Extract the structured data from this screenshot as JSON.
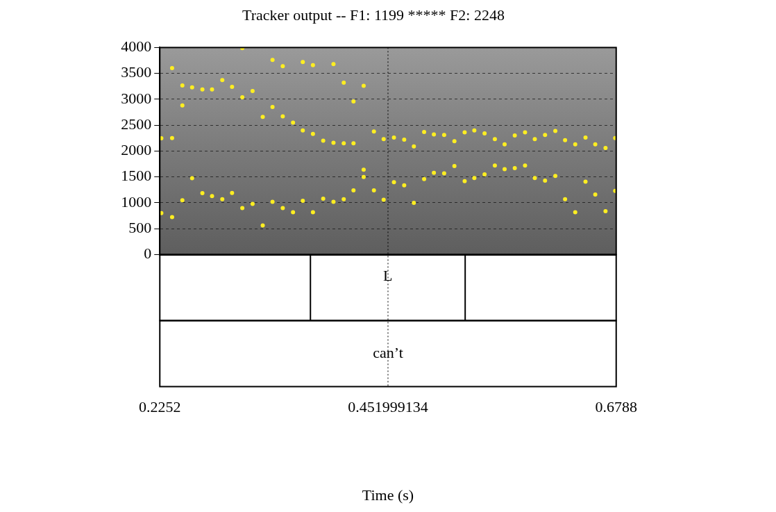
{
  "chart_data": {
    "type": "scatter",
    "title": "Tracker output -- F1: 1199 ***** F2: 2248",
    "x_label": "Time (s)",
    "xlim": [
      0.2252,
      0.6788
    ],
    "xticks": [
      0.2252,
      0.451999134,
      0.6788
    ],
    "ylim": [
      0,
      4000
    ],
    "yticks": [
      0,
      500,
      1000,
      1500,
      2000,
      2500,
      3000,
      3500,
      4000
    ],
    "grid": true,
    "color": "#ffee22",
    "marker": "circle",
    "cursor": 0.451999134,
    "x": [
      0.2267,
      0.2267,
      0.2374,
      0.2374,
      0.2374,
      0.2476,
      0.2476,
      0.2476,
      0.2573,
      0.2573,
      0.2675,
      0.2675,
      0.2771,
      0.2771,
      0.2873,
      0.2873,
      0.297,
      0.297,
      0.3072,
      0.3072,
      0.3072,
      0.3174,
      0.3174,
      0.3275,
      0.3275,
      0.3372,
      0.3372,
      0.3372,
      0.3474,
      0.3474,
      0.3474,
      0.3576,
      0.3576,
      0.3673,
      0.3673,
      0.3673,
      0.3774,
      0.3774,
      0.3774,
      0.3876,
      0.3876,
      0.3978,
      0.3978,
      0.3978,
      0.408,
      0.408,
      0.408,
      0.4177,
      0.4177,
      0.4177,
      0.4278,
      0.4278,
      0.4278,
      0.438,
      0.438,
      0.4477,
      0.4477,
      0.4579,
      0.4579,
      0.4681,
      0.4681,
      0.4777,
      0.4777,
      0.4879,
      0.4879,
      0.4976,
      0.4976,
      0.5078,
      0.5078,
      0.518,
      0.518,
      0.5282,
      0.5282,
      0.5378,
      0.5378,
      0.548,
      0.548,
      0.5582,
      0.5582,
      0.5679,
      0.5679,
      0.578,
      0.578,
      0.5882,
      0.5882,
      0.5979,
      0.5979,
      0.6081,
      0.6081,
      0.6183,
      0.6183,
      0.628,
      0.628,
      0.6381,
      0.6381,
      0.6483,
      0.6483,
      0.658,
      0.658,
      0.6682,
      0.6682,
      0.6778,
      0.6778
    ],
    "values": [
      2247,
      802,
      3604,
      2250,
      723,
      3267,
      2881,
      1049,
      3230,
      1475,
      3190,
      1188,
      3190,
      1130,
      3370,
      1070,
      3240,
      1190,
      3990,
      3040,
      900,
      3160,
      980,
      2660,
      564,
      3760,
      2850,
      1020,
      3640,
      2670,
      900,
      2550,
      820,
      3720,
      2400,
      1040,
      3660,
      2330,
      820,
      2200,
      1080,
      3680,
      2160,
      1020,
      3320,
      2150,
      1070,
      2960,
      2150,
      1240,
      3260,
      1640,
      1500,
      2380,
      1240,
      2230,
      1060,
      2260,
      1400,
      2220,
      1340,
      2090,
      1000,
      2370,
      1460,
      2320,
      1580,
      2310,
      1570,
      2190,
      1710,
      2360,
      1420,
      2400,
      1480,
      2340,
      1550,
      2230,
      1720,
      2130,
      1650,
      2300,
      1670,
      2360,
      1720,
      2230,
      1480,
      2310,
      1430,
      2390,
      1520,
      2210,
      1070,
      2130,
      820,
      2260,
      1410,
      2130,
      1160,
      2060,
      840,
      2250,
      1230
    ],
    "tiers": [
      {
        "intervals": [
          {
            "start": 0.3749,
            "end": 0.5287,
            "text": "L"
          }
        ]
      },
      {
        "intervals": [
          {
            "start": 0.2252,
            "end": 0.6788,
            "text": "can’t"
          }
        ]
      }
    ]
  }
}
